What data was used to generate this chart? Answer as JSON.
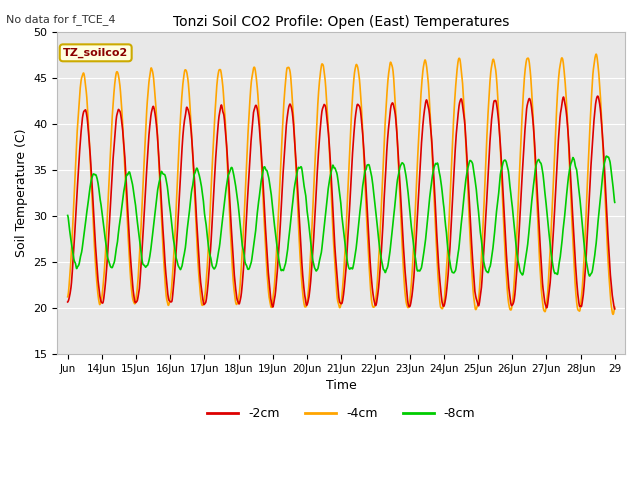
{
  "title": "Tonzi Soil CO2 Profile: Open (East) Temperatures",
  "subtitle": "No data for f_TCE_4",
  "xlabel": "Time",
  "ylabel": "Soil Temperature (C)",
  "ylim": [
    15,
    50
  ],
  "bg_color": "#e8e8e8",
  "fig_color": "#ffffff",
  "series": {
    "-2cm": {
      "color": "#dd0000",
      "lw": 1.2
    },
    "-4cm": {
      "color": "#ffa500",
      "lw": 1.2
    },
    "-8cm": {
      "color": "#00cc00",
      "lw": 1.2
    }
  },
  "legend_label": "TZ_soilco2",
  "xtick_labels": [
    "Jun",
    "14Jun",
    "15Jun",
    "16Jun",
    "17Jun",
    "18Jun",
    "19Jun",
    "20Jun",
    "21Jun",
    "22Jun",
    "23Jun",
    "24Jun",
    "25Jun",
    "26Jun",
    "27Jun",
    "28Jun",
    "29"
  ],
  "ytick_values": [
    15,
    20,
    25,
    30,
    35,
    40,
    45,
    50
  ],
  "grid_color": "#ffffff",
  "mean_2cm": 31.0,
  "mean_4cm": 33.0,
  "mean_8cm": 29.5,
  "amp_2cm": 10.5,
  "amp_4cm": 12.5,
  "amp_8cm": 5.0,
  "amp_growth_2cm": 1.0,
  "amp_growth_4cm": 1.5,
  "amp_growth_8cm": 1.5,
  "phase_2cm": 0.0,
  "phase_4cm": 0.05,
  "phase_8cm": -0.28,
  "mean_growth": 0.5
}
